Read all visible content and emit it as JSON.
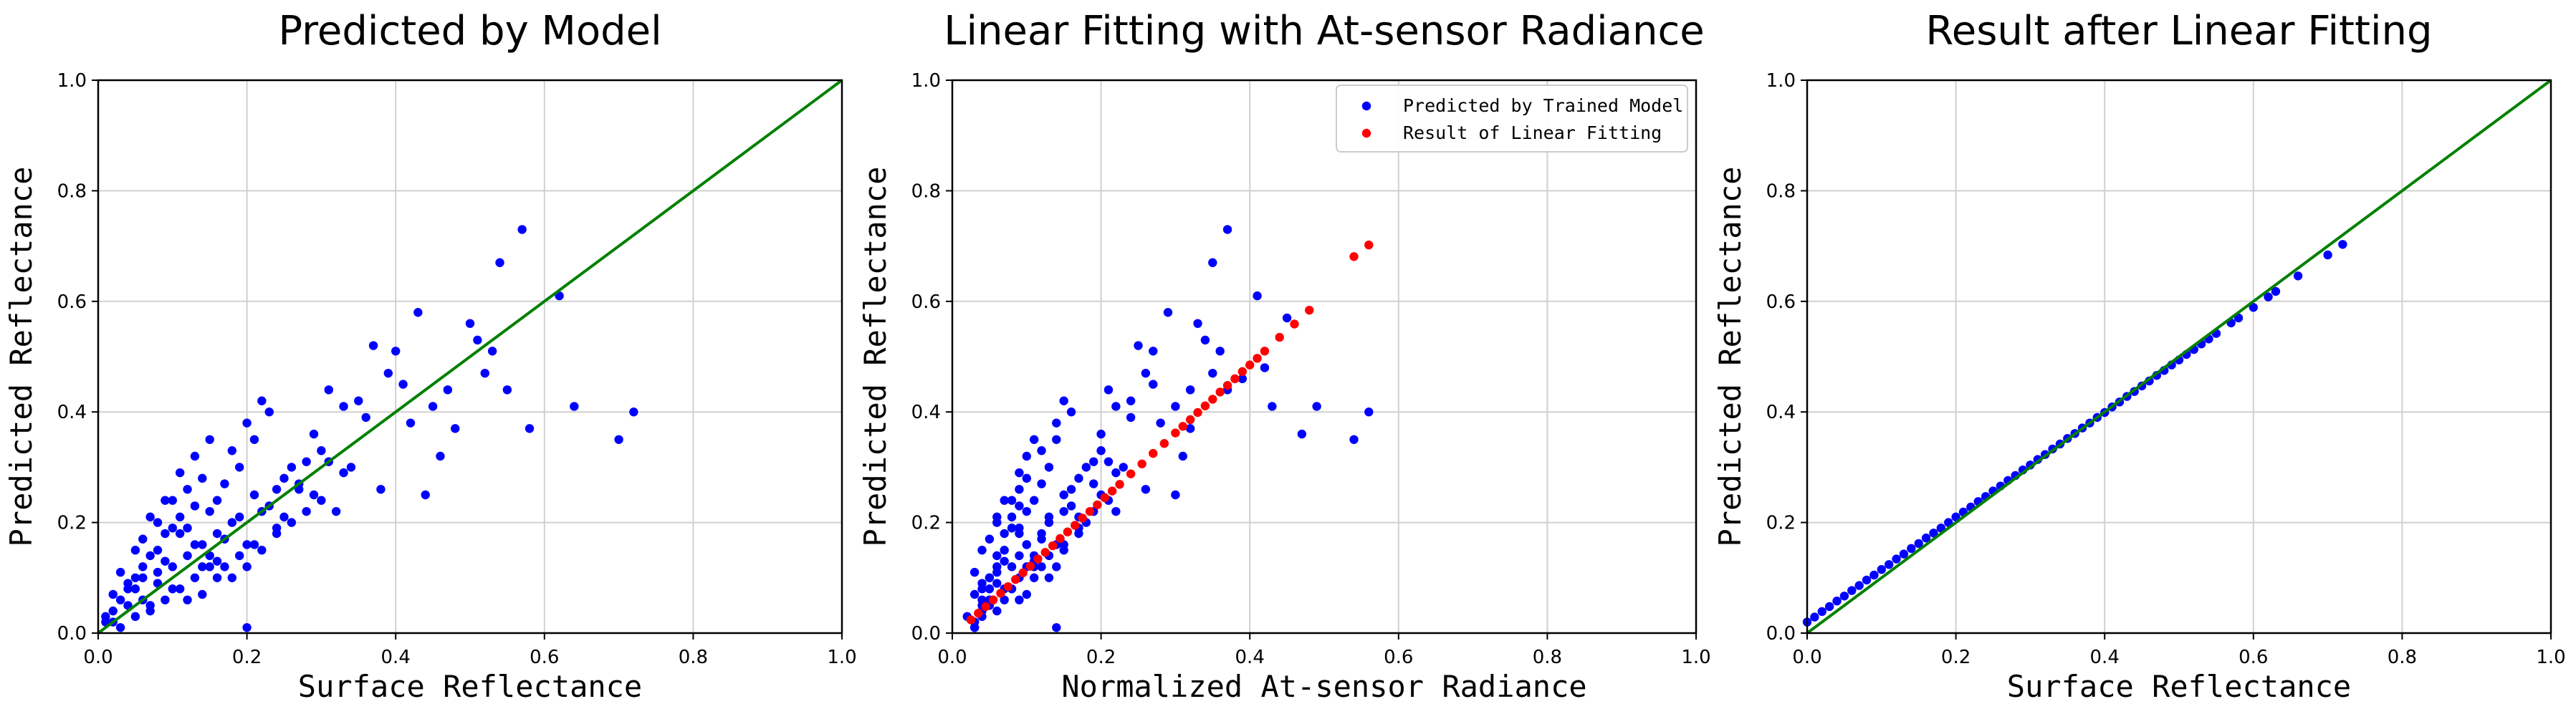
{
  "chart_data": [
    {
      "type": "scatter",
      "title": "Predicted by Model",
      "xlabel": "Surface Reflectance",
      "ylabel": "Predicted Reflectance",
      "xlim": [
        0,
        1
      ],
      "ylim": [
        0,
        1
      ],
      "xticks": [
        "0.0",
        "0.2",
        "0.4",
        "0.6",
        "0.8",
        "1.0"
      ],
      "yticks": [
        "0.0",
        "0.2",
        "0.4",
        "0.6",
        "0.8",
        "1.0"
      ],
      "grid": true,
      "reference_line": {
        "name": "1:1 line",
        "x": [
          0,
          1
        ],
        "y": [
          0,
          1
        ],
        "color": "#008000"
      },
      "series": [
        {
          "name": "Predicted by Model",
          "color": "#0000ff",
          "x": [
            0.57,
            0.54,
            0.62,
            0.64,
            0.7,
            0.72,
            0.58,
            0.5,
            0.51,
            0.53,
            0.45,
            0.46,
            0.48,
            0.43,
            0.42,
            0.4,
            0.37,
            0.39,
            0.41,
            0.35,
            0.33,
            0.3,
            0.34,
            0.36,
            0.31,
            0.28,
            0.29,
            0.26,
            0.25,
            0.24,
            0.22,
            0.21,
            0.2,
            0.23,
            0.33,
            0.32,
            0.38,
            0.44,
            0.47,
            0.52,
            0.55,
            0.27,
            0.19,
            0.18,
            0.17,
            0.16,
            0.15,
            0.14,
            0.13,
            0.12,
            0.11,
            0.1,
            0.09,
            0.08,
            0.07,
            0.06,
            0.05,
            0.04,
            0.03,
            0.02,
            0.01,
            0.2,
            0.22,
            0.24,
            0.26,
            0.28,
            0.3,
            0.18,
            0.16,
            0.14,
            0.12,
            0.1,
            0.08,
            0.06,
            0.04,
            0.02,
            0.03,
            0.05,
            0.07,
            0.09,
            0.11,
            0.13,
            0.15,
            0.17,
            0.19,
            0.21,
            0.23,
            0.25,
            0.27,
            0.29,
            0.31,
            0.06,
            0.08,
            0.1,
            0.12,
            0.14,
            0.16,
            0.18,
            0.2,
            0.13,
            0.15,
            0.11,
            0.09,
            0.07,
            0.05,
            0.04,
            0.06,
            0.08,
            0.1,
            0.12,
            0.14,
            0.16,
            0.19,
            0.21,
            0.24,
            0.22,
            0.17,
            0.15,
            0.13,
            0.11,
            0.09,
            0.03,
            0.02,
            0.01,
            0.05,
            0.07,
            0.2
          ],
          "y": [
            0.73,
            0.67,
            0.61,
            0.41,
            0.35,
            0.4,
            0.37,
            0.56,
            0.53,
            0.51,
            0.41,
            0.32,
            0.37,
            0.58,
            0.38,
            0.51,
            0.52,
            0.47,
            0.45,
            0.42,
            0.41,
            0.33,
            0.3,
            0.39,
            0.44,
            0.31,
            0.36,
            0.3,
            0.28,
            0.26,
            0.42,
            0.35,
            0.38,
            0.4,
            0.29,
            0.22,
            0.26,
            0.25,
            0.44,
            0.47,
            0.44,
            0.26,
            0.3,
            0.33,
            0.27,
            0.24,
            0.22,
            0.28,
            0.23,
            0.26,
            0.21,
            0.19,
            0.18,
            0.15,
            0.14,
            0.12,
            0.1,
            0.08,
            0.06,
            0.04,
            0.02,
            0.12,
            0.15,
            0.18,
            0.2,
            0.22,
            0.24,
            0.1,
            0.13,
            0.12,
            0.14,
            0.12,
            0.09,
            0.06,
            0.05,
            0.02,
            0.01,
            0.03,
            0.05,
            0.06,
            0.08,
            0.1,
            0.12,
            0.17,
            0.21,
            0.25,
            0.23,
            0.21,
            0.27,
            0.25,
            0.31,
            0.17,
            0.2,
            0.24,
            0.19,
            0.16,
            0.18,
            0.2,
            0.16,
            0.32,
            0.35,
            0.29,
            0.24,
            0.21,
            0.15,
            0.09,
            0.1,
            0.11,
            0.08,
            0.06,
            0.07,
            0.1,
            0.14,
            0.16,
            0.19,
            0.22,
            0.12,
            0.14,
            0.16,
            0.18,
            0.13,
            0.11,
            0.07,
            0.03,
            0.08,
            0.04,
            0.01
          ]
        }
      ]
    },
    {
      "type": "scatter",
      "title": "Linear Fitting with At-sensor Radiance",
      "xlabel": "Normalized At-sensor Radiance",
      "ylabel": "Predicted Reflectance",
      "xlim": [
        0,
        1
      ],
      "ylim": [
        0,
        1
      ],
      "xticks": [
        "0.0",
        "0.2",
        "0.4",
        "0.6",
        "0.8",
        "1.0"
      ],
      "yticks": [
        "0.0",
        "0.2",
        "0.4",
        "0.6",
        "0.8",
        "1.0"
      ],
      "grid": true,
      "legend": {
        "position": "top-right",
        "entries": [
          "Predicted by Trained Model",
          "Result of Linear Fitting"
        ]
      },
      "series": [
        {
          "name": "Predicted by Trained Model",
          "color": "#0000ff",
          "x": [
            0.37,
            0.35,
            0.41,
            0.43,
            0.54,
            0.56,
            0.47,
            0.33,
            0.34,
            0.36,
            0.3,
            0.31,
            0.32,
            0.29,
            0.28,
            0.27,
            0.25,
            0.26,
            0.27,
            0.24,
            0.22,
            0.2,
            0.23,
            0.24,
            0.21,
            0.19,
            0.2,
            0.18,
            0.17,
            0.16,
            0.15,
            0.14,
            0.14,
            0.16,
            0.22,
            0.22,
            0.26,
            0.3,
            0.32,
            0.35,
            0.37,
            0.45,
            0.49,
            0.39,
            0.42,
            0.13,
            0.12,
            0.12,
            0.11,
            0.1,
            0.1,
            0.09,
            0.09,
            0.08,
            0.08,
            0.07,
            0.07,
            0.06,
            0.06,
            0.05,
            0.05,
            0.04,
            0.04,
            0.03,
            0.03,
            0.14,
            0.15,
            0.17,
            0.18,
            0.19,
            0.21,
            0.13,
            0.11,
            0.1,
            0.09,
            0.08,
            0.06,
            0.05,
            0.04,
            0.03,
            0.03,
            0.04,
            0.05,
            0.07,
            0.08,
            0.09,
            0.11,
            0.12,
            0.13,
            0.15,
            0.16,
            0.17,
            0.19,
            0.2,
            0.21,
            0.05,
            0.06,
            0.08,
            0.09,
            0.1,
            0.12,
            0.13,
            0.14,
            0.1,
            0.11,
            0.09,
            0.07,
            0.06,
            0.04,
            0.04,
            0.05,
            0.06,
            0.07,
            0.09,
            0.1,
            0.11,
            0.13,
            0.15,
            0.17,
            0.15,
            0.12,
            0.11,
            0.1,
            0.09,
            0.07,
            0.03,
            0.03,
            0.02,
            0.04,
            0.06,
            0.14
          ],
          "y": [
            0.73,
            0.67,
            0.61,
            0.41,
            0.35,
            0.4,
            0.36,
            0.56,
            0.53,
            0.51,
            0.41,
            0.32,
            0.37,
            0.58,
            0.38,
            0.51,
            0.52,
            0.47,
            0.45,
            0.42,
            0.41,
            0.33,
            0.3,
            0.39,
            0.44,
            0.31,
            0.36,
            0.3,
            0.28,
            0.26,
            0.42,
            0.35,
            0.38,
            0.4,
            0.29,
            0.22,
            0.26,
            0.25,
            0.44,
            0.47,
            0.44,
            0.57,
            0.41,
            0.46,
            0.48,
            0.3,
            0.33,
            0.27,
            0.24,
            0.22,
            0.28,
            0.23,
            0.26,
            0.21,
            0.19,
            0.18,
            0.15,
            0.14,
            0.12,
            0.1,
            0.08,
            0.06,
            0.04,
            0.02,
            0.01,
            0.12,
            0.15,
            0.18,
            0.2,
            0.22,
            0.24,
            0.1,
            0.13,
            0.12,
            0.14,
            0.12,
            0.09,
            0.06,
            0.05,
            0.02,
            0.01,
            0.03,
            0.05,
            0.06,
            0.08,
            0.1,
            0.12,
            0.17,
            0.21,
            0.25,
            0.23,
            0.21,
            0.27,
            0.25,
            0.31,
            0.17,
            0.2,
            0.24,
            0.19,
            0.16,
            0.18,
            0.2,
            0.16,
            0.32,
            0.35,
            0.29,
            0.24,
            0.21,
            0.15,
            0.09,
            0.1,
            0.11,
            0.08,
            0.06,
            0.07,
            0.1,
            0.14,
            0.16,
            0.19,
            0.22,
            0.12,
            0.14,
            0.16,
            0.18,
            0.13,
            0.11,
            0.07,
            0.03,
            0.08,
            0.04,
            0.01
          ]
        },
        {
          "name": "Result of Linear Fitting",
          "color": "#ff0000",
          "x": [
            0.025,
            0.035,
            0.045,
            0.055,
            0.065,
            0.075,
            0.085,
            0.095,
            0.105,
            0.115,
            0.125,
            0.135,
            0.145,
            0.155,
            0.165,
            0.175,
            0.185,
            0.195,
            0.205,
            0.215,
            0.225,
            0.24,
            0.255,
            0.27,
            0.285,
            0.3,
            0.31,
            0.32,
            0.33,
            0.34,
            0.35,
            0.36,
            0.37,
            0.38,
            0.39,
            0.4,
            0.41,
            0.42,
            0.44,
            0.46,
            0.48,
            0.54,
            0.56
          ],
          "y": [
            0.024,
            0.036,
            0.048,
            0.06,
            0.072,
            0.084,
            0.097,
            0.109,
            0.121,
            0.134,
            0.146,
            0.158,
            0.171,
            0.183,
            0.195,
            0.208,
            0.22,
            0.232,
            0.245,
            0.257,
            0.269,
            0.288,
            0.306,
            0.325,
            0.343,
            0.362,
            0.374,
            0.386,
            0.399,
            0.411,
            0.423,
            0.436,
            0.448,
            0.46,
            0.473,
            0.485,
            0.497,
            0.51,
            0.535,
            0.559,
            0.584,
            0.681,
            0.702
          ]
        }
      ]
    },
    {
      "type": "scatter",
      "title": "Result after Linear Fitting",
      "xlabel": "Surface Reflectance",
      "ylabel": "Predicted Reflectance",
      "xlim": [
        0,
        1
      ],
      "ylim": [
        0,
        1
      ],
      "xticks": [
        "0.0",
        "0.2",
        "0.4",
        "0.6",
        "0.8",
        "1.0"
      ],
      "yticks": [
        "0.0",
        "0.2",
        "0.4",
        "0.6",
        "0.8",
        "1.0"
      ],
      "grid": true,
      "reference_line": {
        "name": "1:1 line",
        "x": [
          0,
          1
        ],
        "y": [
          0,
          1
        ],
        "color": "#008000"
      },
      "series": [
        {
          "name": "Result after Linear Fitting",
          "color": "#0000ff",
          "x": [
            0.0,
            0.01,
            0.02,
            0.03,
            0.04,
            0.05,
            0.06,
            0.07,
            0.08,
            0.09,
            0.1,
            0.11,
            0.12,
            0.13,
            0.14,
            0.15,
            0.16,
            0.17,
            0.18,
            0.19,
            0.2,
            0.21,
            0.22,
            0.23,
            0.24,
            0.25,
            0.26,
            0.27,
            0.28,
            0.29,
            0.3,
            0.31,
            0.32,
            0.33,
            0.34,
            0.35,
            0.36,
            0.37,
            0.38,
            0.39,
            0.4,
            0.41,
            0.42,
            0.43,
            0.44,
            0.45,
            0.46,
            0.47,
            0.48,
            0.49,
            0.5,
            0.51,
            0.52,
            0.53,
            0.54,
            0.55,
            0.57,
            0.58,
            0.6,
            0.62,
            0.63,
            0.66,
            0.7,
            0.72
          ],
          "y": [
            0.02,
            0.029,
            0.039,
            0.048,
            0.058,
            0.067,
            0.077,
            0.086,
            0.096,
            0.105,
            0.115,
            0.124,
            0.134,
            0.143,
            0.153,
            0.162,
            0.172,
            0.181,
            0.19,
            0.2,
            0.21,
            0.219,
            0.228,
            0.238,
            0.247,
            0.257,
            0.266,
            0.276,
            0.285,
            0.295,
            0.304,
            0.314,
            0.323,
            0.333,
            0.342,
            0.352,
            0.361,
            0.371,
            0.38,
            0.39,
            0.399,
            0.409,
            0.418,
            0.428,
            0.437,
            0.447,
            0.456,
            0.466,
            0.475,
            0.485,
            0.494,
            0.504,
            0.513,
            0.523,
            0.532,
            0.542,
            0.561,
            0.57,
            0.589,
            0.608,
            0.618,
            0.646,
            0.684,
            0.703
          ]
        }
      ]
    }
  ]
}
